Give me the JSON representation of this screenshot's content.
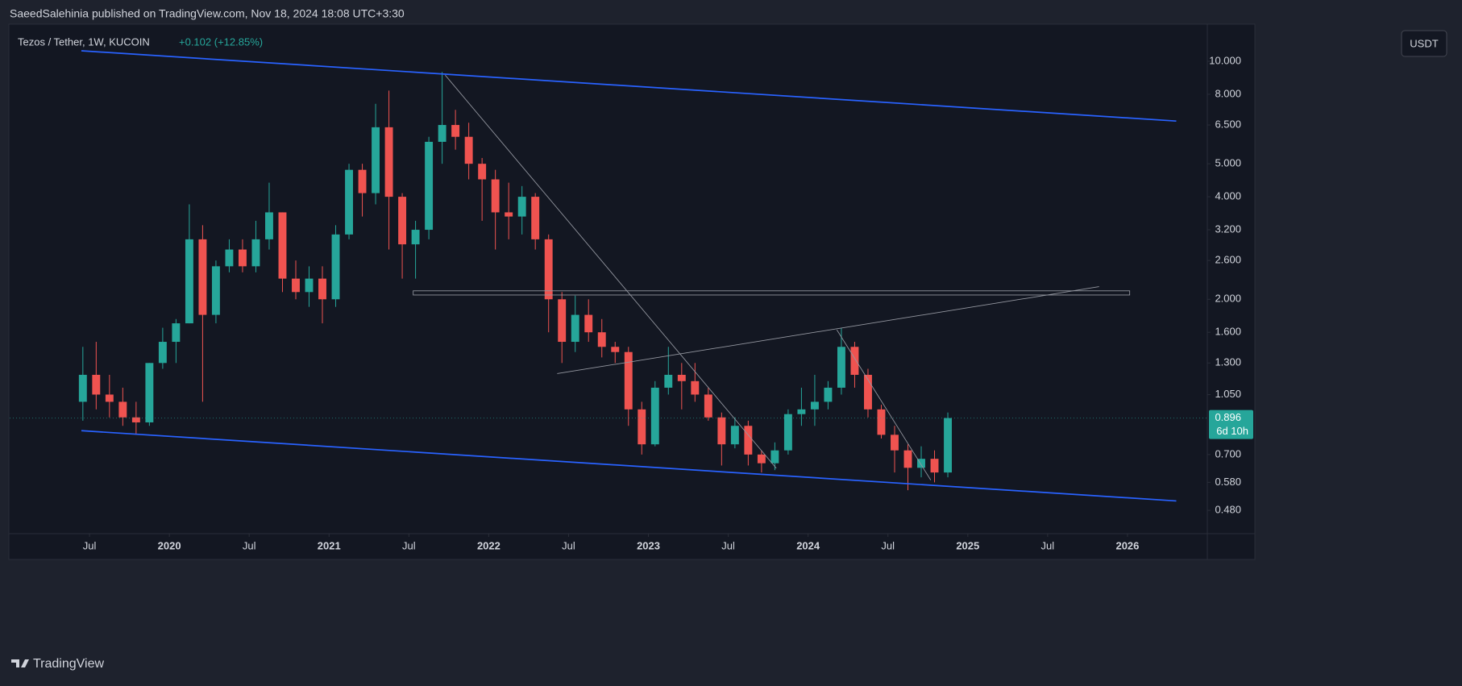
{
  "header": {
    "published": "SaeedSalehinia published on TradingView.com, Nov 18, 2024 18:08 UTC+3:30"
  },
  "footer": {
    "brand": "TradingView"
  },
  "chart_data": {
    "type": "candlestick",
    "title": "Tezos / Tether, 1W, KUCOIN",
    "change": "+0.102 (+12.85%)",
    "currency": "USDT",
    "last_price": 0.896,
    "countdown": "6d 10h",
    "log_scale": true,
    "up_color": "#26a69a",
    "down_color": "#ef5350",
    "xlim": [
      "2019-01",
      "2026-07"
    ],
    "xticks": [
      {
        "value": "2019-07",
        "label": "Jul"
      },
      {
        "value": "2020-01",
        "label": "2020"
      },
      {
        "value": "2020-07",
        "label": "Jul"
      },
      {
        "value": "2021-01",
        "label": "2021"
      },
      {
        "value": "2021-07",
        "label": "Jul"
      },
      {
        "value": "2022-01",
        "label": "2022"
      },
      {
        "value": "2022-07",
        "label": "Jul"
      },
      {
        "value": "2023-01",
        "label": "2023"
      },
      {
        "value": "2023-07",
        "label": "Jul"
      },
      {
        "value": "2024-01",
        "label": "2024"
      },
      {
        "value": "2024-07",
        "label": "Jul"
      },
      {
        "value": "2025-01",
        "label": "2025"
      },
      {
        "value": "2025-07",
        "label": "Jul"
      },
      {
        "value": "2026-01",
        "label": "2026"
      }
    ],
    "ylim": [
      0.41,
      12.85
    ],
    "yticks": [
      {
        "value": 10,
        "label": "10.000"
      },
      {
        "value": 8,
        "label": "8.000"
      },
      {
        "value": 6.5,
        "label": "6.500"
      },
      {
        "value": 5,
        "label": "5.000"
      },
      {
        "value": 4,
        "label": "4.000"
      },
      {
        "value": 3.2,
        "label": "3.200"
      },
      {
        "value": 2.6,
        "label": "2.600"
      },
      {
        "value": 2,
        "label": "2.000"
      },
      {
        "value": 1.6,
        "label": "1.600"
      },
      {
        "value": 1.3,
        "label": "1.300"
      },
      {
        "value": 1.05,
        "label": "1.050"
      },
      {
        "value": 0.7,
        "label": "0.700"
      },
      {
        "value": 0.58,
        "label": "0.580"
      },
      {
        "value": 0.48,
        "label": "0.480"
      }
    ],
    "x": [
      "2019-06",
      "2019-07",
      "2019-08",
      "2019-09",
      "2019-10",
      "2019-11",
      "2019-12",
      "2020-01",
      "2020-02",
      "2020-03",
      "2020-04",
      "2020-05",
      "2020-06",
      "2020-07",
      "2020-08",
      "2020-09",
      "2020-10",
      "2020-11",
      "2020-12",
      "2021-01",
      "2021-02",
      "2021-03",
      "2021-04",
      "2021-05",
      "2021-06",
      "2021-07",
      "2021-08",
      "2021-09",
      "2021-10",
      "2021-11",
      "2021-12",
      "2022-01",
      "2022-02",
      "2022-03",
      "2022-04",
      "2022-05",
      "2022-06",
      "2022-07",
      "2022-08",
      "2022-09",
      "2022-10",
      "2022-11",
      "2022-12",
      "2023-01",
      "2023-02",
      "2023-03",
      "2023-04",
      "2023-05",
      "2023-06",
      "2023-07",
      "2023-08",
      "2023-09",
      "2023-10",
      "2023-11",
      "2023-12",
      "2024-01",
      "2024-02",
      "2024-03",
      "2024-04",
      "2024-05",
      "2024-06",
      "2024-07",
      "2024-08",
      "2024-09",
      "2024-10",
      "2024-11"
    ],
    "open": [
      1.0,
      1.2,
      1.05,
      1.0,
      0.9,
      0.87,
      1.3,
      1.5,
      1.7,
      3.0,
      1.8,
      2.5,
      2.8,
      2.5,
      3.0,
      3.6,
      2.3,
      2.1,
      2.3,
      2.0,
      3.1,
      4.8,
      4.1,
      6.4,
      4.0,
      2.9,
      3.2,
      5.8,
      6.5,
      6.0,
      5.0,
      4.5,
      3.6,
      3.5,
      4.0,
      3.0,
      2.0,
      1.5,
      1.8,
      1.6,
      1.45,
      1.4,
      0.95,
      0.75,
      1.1,
      1.2,
      1.15,
      1.05,
      0.9,
      0.75,
      0.85,
      0.7,
      0.66,
      0.72,
      0.92,
      0.95,
      1.0,
      1.1,
      1.45,
      1.2,
      0.95,
      0.8,
      0.72,
      0.64,
      0.68,
      0.62
    ],
    "high": [
      1.45,
      1.5,
      1.2,
      1.1,
      1.0,
      1.3,
      1.65,
      1.75,
      3.8,
      3.3,
      2.6,
      3.0,
      3.0,
      3.4,
      4.4,
      3.6,
      2.6,
      2.5,
      2.5,
      3.3,
      5.0,
      5.0,
      7.5,
      8.2,
      4.1,
      3.4,
      6.0,
      9.3,
      7.2,
      6.6,
      5.2,
      4.8,
      4.4,
      4.3,
      4.1,
      3.1,
      2.1,
      2.05,
      2.0,
      1.75,
      1.5,
      1.45,
      1.0,
      1.15,
      1.45,
      1.3,
      1.3,
      1.1,
      0.93,
      0.9,
      0.88,
      0.72,
      0.76,
      0.95,
      1.1,
      1.2,
      1.15,
      1.65,
      1.5,
      1.25,
      0.98,
      0.85,
      0.75,
      0.74,
      0.72,
      0.93
    ],
    "low": [
      0.88,
      0.95,
      0.9,
      0.85,
      0.8,
      0.85,
      1.25,
      1.3,
      1.7,
      1.0,
      1.7,
      2.4,
      2.4,
      2.4,
      2.8,
      2.1,
      2.0,
      1.9,
      1.7,
      1.9,
      3.0,
      3.5,
      3.8,
      2.8,
      2.3,
      2.3,
      3.0,
      5.0,
      5.5,
      4.5,
      3.4,
      2.8,
      3.0,
      3.1,
      2.8,
      1.6,
      1.3,
      1.4,
      1.5,
      1.35,
      1.3,
      0.85,
      0.7,
      0.74,
      1.05,
      0.95,
      1.0,
      0.88,
      0.65,
      0.73,
      0.65,
      0.62,
      0.63,
      0.7,
      0.85,
      0.85,
      0.95,
      1.05,
      1.1,
      0.9,
      0.78,
      0.62,
      0.55,
      0.6,
      0.58,
      0.6
    ],
    "close": [
      1.2,
      1.05,
      1.0,
      0.9,
      0.87,
      1.3,
      1.5,
      1.7,
      3.0,
      1.8,
      2.5,
      2.8,
      2.5,
      3.0,
      3.6,
      2.3,
      2.1,
      2.3,
      2.0,
      3.1,
      4.8,
      4.1,
      6.4,
      4.0,
      2.9,
      3.2,
      5.8,
      6.5,
      6.0,
      5.0,
      4.5,
      3.6,
      3.5,
      4.0,
      3.0,
      2.0,
      1.5,
      1.8,
      1.6,
      1.45,
      1.4,
      0.95,
      0.75,
      1.1,
      1.2,
      1.15,
      1.05,
      0.9,
      0.75,
      0.85,
      0.7,
      0.66,
      0.72,
      0.92,
      0.95,
      1.0,
      1.1,
      1.45,
      1.2,
      0.95,
      0.8,
      0.72,
      0.64,
      0.68,
      0.62,
      0.896
    ]
  }
}
